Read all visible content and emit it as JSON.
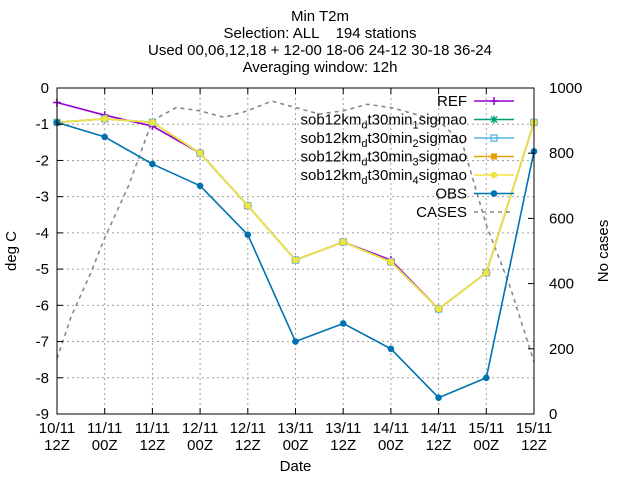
{
  "chart_data": {
    "type": "line",
    "title_lines": [
      "Min T2m",
      "Selection: ALL    194 stations",
      "Used 00,06,12,18 + 12-00 18-06 24-12 30-18 36-24",
      "Averaging window: 12h"
    ],
    "xlabel": "Date",
    "ylabel": "deg C",
    "y2label": "No cases",
    "categories": [
      [
        "10/11",
        "12Z"
      ],
      [
        "11/11",
        "00Z"
      ],
      [
        "11/11",
        "12Z"
      ],
      [
        "12/11",
        "00Z"
      ],
      [
        "12/11",
        "12Z"
      ],
      [
        "13/11",
        "00Z"
      ],
      [
        "13/11",
        "12Z"
      ],
      [
        "14/11",
        "00Z"
      ],
      [
        "14/11",
        "12Z"
      ],
      [
        "15/11",
        "00Z"
      ],
      [
        "15/11",
        "12Z"
      ]
    ],
    "ylim": [
      -9,
      0
    ],
    "yticks": [
      0,
      -1,
      -2,
      -3,
      -4,
      -5,
      -6,
      -7,
      -8,
      -9
    ],
    "y2lim": [
      0,
      1000
    ],
    "y2ticks": [
      0,
      200,
      400,
      600,
      800,
      1000
    ],
    "grid": true,
    "legend_position": "top-right",
    "series": [
      {
        "name": "REF",
        "color": "#9400d3",
        "marker": "plus",
        "values": [
          -0.4,
          -0.75,
          -1.05,
          -1.8,
          -3.25,
          -4.75,
          -4.25,
          -4.75,
          -6.1,
          -5.1,
          -0.95
        ]
      },
      {
        "name_main": "sob12km",
        "name_sub": "d",
        "name_mid": "t30min",
        "name_sub2": "1",
        "name_end": "sigmao",
        "color": "#009e73",
        "marker": "star",
        "values": [
          -0.95,
          -0.85,
          -0.95,
          -1.8,
          -3.25,
          -4.75,
          -4.25,
          -4.8,
          -6.1,
          -5.1,
          -0.95
        ]
      },
      {
        "name_main": "sob12km",
        "name_sub": "d",
        "name_mid": "t30min",
        "name_sub2": "2",
        "name_end": "sigmao",
        "color": "#56b4e9",
        "marker": "box",
        "values": [
          -0.95,
          -0.85,
          -0.95,
          -1.8,
          -3.25,
          -4.75,
          -4.25,
          -4.8,
          -6.1,
          -5.1,
          -0.95
        ]
      },
      {
        "name_main": "sob12km",
        "name_sub": "d",
        "name_mid": "t30min",
        "name_sub2": "3",
        "name_end": "sigmao",
        "color": "#e69f00",
        "marker": "boxfilled",
        "values": [
          -0.95,
          -0.85,
          -0.95,
          -1.8,
          -3.25,
          -4.75,
          -4.25,
          -4.8,
          -6.1,
          -5.1,
          -0.95
        ]
      },
      {
        "name_main": "sob12km",
        "name_sub": "d",
        "name_mid": "t30min",
        "name_sub2": "4",
        "name_end": "sigmao",
        "color": "#f0e442",
        "marker": "circle",
        "values": [
          -0.95,
          -0.85,
          -0.95,
          -1.8,
          -3.25,
          -4.75,
          -4.25,
          -4.8,
          -6.1,
          -5.1,
          -0.95
        ]
      },
      {
        "name": "OBS",
        "color": "#0072b2",
        "marker": "circle",
        "values": [
          -0.95,
          -1.35,
          -2.1,
          -2.7,
          -4.05,
          -7.0,
          -6.5,
          -7.2,
          -8.55,
          -8.0,
          -1.75
        ]
      }
    ],
    "cases": {
      "name": "CASES",
      "color": "#888888",
      "axis": "y2",
      "x": [
        0,
        0.3,
        0.7,
        1.0,
        1.5,
        2.0,
        2.5,
        3.0,
        3.5,
        4.0,
        4.5,
        5.0,
        5.5,
        6.0,
        6.5,
        7.0,
        7.5,
        8.0,
        8.5,
        9.0,
        9.5,
        10.0
      ],
      "values": [
        170,
        300,
        430,
        540,
        700,
        900,
        940,
        930,
        910,
        930,
        960,
        940,
        920,
        930,
        950,
        940,
        920,
        900,
        830,
        580,
        390,
        160
      ]
    }
  }
}
